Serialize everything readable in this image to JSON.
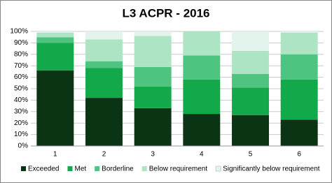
{
  "chart_data": {
    "type": "stacked-bar",
    "title": "L3 ACPR - 2016",
    "categories": [
      "1",
      "2",
      "3",
      "4",
      "5",
      "6"
    ],
    "series": [
      {
        "name": "Exceeded",
        "color": "#0b3414",
        "values": [
          66,
          42,
          33,
          28,
          27,
          23
        ]
      },
      {
        "name": "Met",
        "color": "#12a94b",
        "values": [
          24,
          26,
          19,
          30,
          24,
          35
        ]
      },
      {
        "name": "Borderline",
        "color": "#4fc480",
        "values": [
          5,
          6,
          17,
          21,
          12,
          22
        ]
      },
      {
        "name": "Below requirement",
        "color": "#ade5c4",
        "values": [
          4,
          19,
          27,
          21,
          20,
          19
        ]
      },
      {
        "name": "Significantly below requirement",
        "color": "#e3f4ec",
        "values": [
          1,
          7,
          4,
          0,
          17,
          1
        ]
      }
    ],
    "ylim": [
      0,
      100
    ],
    "yticks": [
      {
        "value": 0,
        "label": "0%"
      },
      {
        "value": 10,
        "label": "10%"
      },
      {
        "value": 20,
        "label": "20%"
      },
      {
        "value": 30,
        "label": "30%"
      },
      {
        "value": 40,
        "label": "40%"
      },
      {
        "value": 50,
        "label": "50%"
      },
      {
        "value": 60,
        "label": "60%"
      },
      {
        "value": 70,
        "label": "70%"
      },
      {
        "value": 80,
        "label": "80%"
      },
      {
        "value": 90,
        "label": "90%"
      },
      {
        "value": 100,
        "label": "100%"
      }
    ],
    "grid": true,
    "legend": "bottom"
  }
}
